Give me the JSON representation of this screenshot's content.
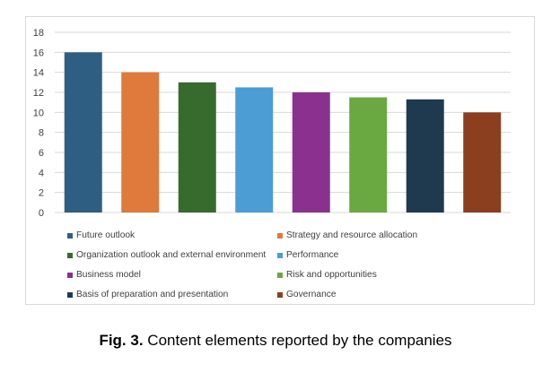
{
  "chart_data": {
    "type": "bar",
    "categories": [
      "Future outlook",
      "Strategy and resource allocation",
      "Organization outlook and external environment",
      "Performance",
      "Business model",
      "Risk and opportunities",
      "Basis of preparation and presentation",
      "Governance"
    ],
    "values": [
      16,
      14,
      13,
      12.5,
      12,
      11.5,
      11.3,
      10
    ],
    "colors": [
      "#2e5f82",
      "#de7a3b",
      "#376b2e",
      "#4b9dd4",
      "#8a3190",
      "#6aa841",
      "#1f3a4f",
      "#8b3f1f"
    ],
    "ylim": [
      0,
      18
    ],
    "yticks": [
      0,
      2,
      4,
      6,
      8,
      10,
      12,
      14,
      16,
      18
    ],
    "grid": true,
    "legend_position": "bottom"
  },
  "caption": {
    "label": "Fig. 3.",
    "text": " Content elements reported by the companies"
  }
}
